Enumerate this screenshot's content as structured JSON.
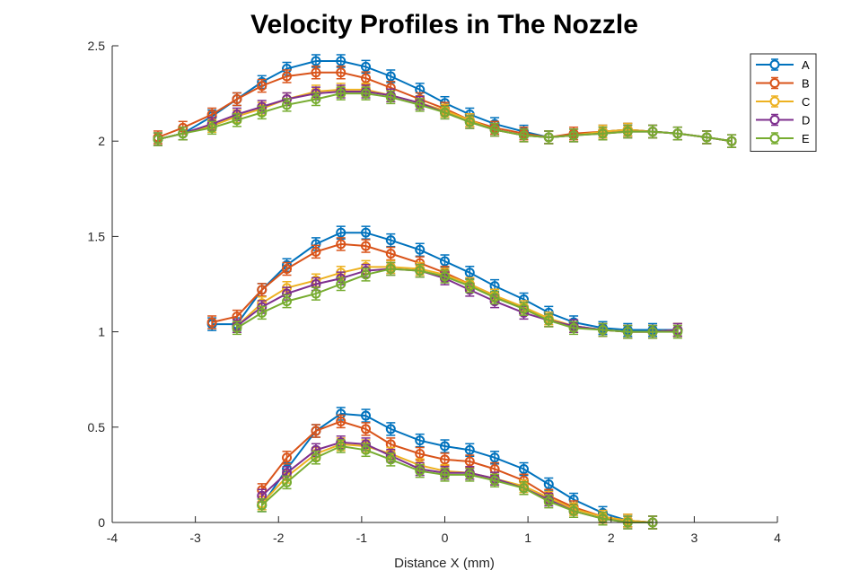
{
  "chart_data": {
    "type": "line",
    "title": "Velocity Profiles in The Nozzle",
    "xlabel": "Distance X (mm)",
    "ylabel": "",
    "xlim": [
      -4,
      4
    ],
    "ylim": [
      0,
      2.5
    ],
    "xticks": [
      "-4",
      "-3",
      "-2",
      "-1",
      "0",
      "1",
      "2",
      "3",
      "4"
    ],
    "yticks": [
      "0",
      "0.5",
      "1",
      "1.5",
      "2",
      "2.5"
    ],
    "grid": false,
    "legend_position": "top-right",
    "markers": "open-circle-with-error-bars",
    "series": [
      {
        "name": "A",
        "color": "#0072BD",
        "groups": [
          {
            "x": [
              -3.45,
              -3.15,
              -2.8,
              -2.5,
              -2.2,
              -1.9,
              -1.55,
              -1.25,
              -0.95,
              -0.65,
              -0.3,
              0.0,
              0.3,
              0.6,
              0.95,
              1.25,
              1.55,
              1.9,
              2.2,
              2.5,
              2.8,
              3.15,
              3.45
            ],
            "y": [
              2.01,
              2.04,
              2.13,
              2.22,
              2.31,
              2.38,
              2.42,
              2.42,
              2.39,
              2.34,
              2.27,
              2.2,
              2.14,
              2.09,
              2.05,
              2.02,
              2.03,
              2.05,
              2.06,
              2.05,
              2.04,
              2.02,
              2.0
            ]
          },
          {
            "x": [
              -2.8,
              -2.5,
              -2.2,
              -1.9,
              -1.55,
              -1.25,
              -0.95,
              -0.65,
              -0.3,
              0.0,
              0.3,
              0.6,
              0.95,
              1.25,
              1.55,
              1.9,
              2.2,
              2.5,
              2.8
            ],
            "y": [
              1.04,
              1.04,
              1.22,
              1.35,
              1.46,
              1.52,
              1.52,
              1.48,
              1.43,
              1.37,
              1.31,
              1.24,
              1.17,
              1.1,
              1.05,
              1.02,
              1.01,
              1.01,
              1.01
            ]
          },
          {
            "x": [
              -2.2,
              -1.9,
              -1.55,
              -1.25,
              -0.95,
              -0.65,
              -0.3,
              0.0,
              0.3,
              0.6,
              0.95,
              1.25,
              1.55,
              1.9,
              2.2,
              2.5
            ],
            "y": [
              0.09,
              0.28,
              0.48,
              0.57,
              0.56,
              0.49,
              0.43,
              0.4,
              0.38,
              0.34,
              0.28,
              0.2,
              0.12,
              0.05,
              0.01,
              0.0
            ]
          }
        ]
      },
      {
        "name": "B",
        "color": "#D95319",
        "groups": [
          {
            "x": [
              -3.45,
              -3.15,
              -2.8,
              -2.5,
              -2.2,
              -1.9,
              -1.55,
              -1.25,
              -0.95,
              -0.65,
              -0.3,
              0.0,
              0.3,
              0.6,
              0.95,
              1.25,
              1.55,
              1.9,
              2.2,
              2.5,
              2.8,
              3.15,
              3.45
            ],
            "y": [
              2.02,
              2.07,
              2.14,
              2.22,
              2.29,
              2.34,
              2.36,
              2.36,
              2.33,
              2.28,
              2.22,
              2.17,
              2.11,
              2.07,
              2.04,
              2.02,
              2.04,
              2.05,
              2.06,
              2.05,
              2.04,
              2.02,
              2.0
            ]
          },
          {
            "x": [
              -2.8,
              -2.5,
              -2.2,
              -1.9,
              -1.55,
              -1.25,
              -0.95,
              -0.65,
              -0.3,
              0.0,
              0.3,
              0.6,
              0.95,
              1.25,
              1.55,
              1.9,
              2.2,
              2.5,
              2.8
            ],
            "y": [
              1.05,
              1.08,
              1.22,
              1.33,
              1.42,
              1.46,
              1.45,
              1.41,
              1.36,
              1.31,
              1.25,
              1.19,
              1.12,
              1.06,
              1.03,
              1.01,
              1.0,
              1.0,
              1.01
            ]
          },
          {
            "x": [
              -2.2,
              -1.9,
              -1.55,
              -1.25,
              -0.95,
              -0.65,
              -0.3,
              0.0,
              0.3,
              0.6,
              0.95,
              1.25,
              1.55,
              1.9,
              2.2,
              2.5
            ],
            "y": [
              0.17,
              0.34,
              0.48,
              0.53,
              0.49,
              0.41,
              0.36,
              0.33,
              0.32,
              0.28,
              0.22,
              0.14,
              0.08,
              0.03,
              0.01,
              0.0
            ]
          }
        ]
      },
      {
        "name": "C",
        "color": "#EDB120",
        "groups": [
          {
            "x": [
              -3.45,
              -3.15,
              -2.8,
              -2.5,
              -2.2,
              -1.9,
              -1.55,
              -1.25,
              -0.95,
              -0.65,
              -0.3,
              0.0,
              0.3,
              0.6,
              0.95,
              1.25,
              1.55,
              1.9,
              2.2,
              2.5,
              2.8,
              3.15,
              3.45
            ],
            "y": [
              2.01,
              2.04,
              2.08,
              2.13,
              2.17,
              2.22,
              2.26,
              2.27,
              2.27,
              2.24,
              2.2,
              2.16,
              2.11,
              2.06,
              2.03,
              2.02,
              2.03,
              2.05,
              2.06,
              2.05,
              2.04,
              2.02,
              2.0
            ]
          },
          {
            "x": [
              -2.5,
              -2.2,
              -1.9,
              -1.55,
              -1.25,
              -0.95,
              -0.65,
              -0.3,
              0.0,
              0.3,
              0.6,
              0.95,
              1.25,
              1.55,
              1.9,
              2.2,
              2.5,
              2.8
            ],
            "y": [
              1.03,
              1.15,
              1.23,
              1.27,
              1.31,
              1.34,
              1.34,
              1.33,
              1.3,
              1.25,
              1.19,
              1.13,
              1.07,
              1.03,
              1.01,
              1.0,
              1.0,
              1.01
            ]
          },
          {
            "x": [
              -2.2,
              -1.9,
              -1.55,
              -1.25,
              -0.95,
              -0.65,
              -0.3,
              0.0,
              0.3,
              0.6,
              0.95,
              1.25,
              1.55,
              1.9,
              2.2,
              2.5
            ],
            "y": [
              0.1,
              0.24,
              0.36,
              0.41,
              0.4,
              0.36,
              0.3,
              0.27,
              0.26,
              0.23,
              0.19,
              0.13,
              0.07,
              0.03,
              0.01,
              0.0
            ]
          }
        ]
      },
      {
        "name": "D",
        "color": "#7E2F8E",
        "groups": [
          {
            "x": [
              -3.45,
              -3.15,
              -2.8,
              -2.5,
              -2.2,
              -1.9,
              -1.55,
              -1.25,
              -0.95,
              -0.65,
              -0.3,
              0.0,
              0.3,
              0.6,
              0.95,
              1.25,
              1.55,
              1.9,
              2.2,
              2.5,
              2.8,
              3.15,
              3.45
            ],
            "y": [
              2.01,
              2.04,
              2.09,
              2.14,
              2.18,
              2.22,
              2.25,
              2.26,
              2.26,
              2.24,
              2.2,
              2.15,
              2.1,
              2.06,
              2.03,
              2.02,
              2.03,
              2.04,
              2.05,
              2.05,
              2.04,
              2.02,
              2.0
            ]
          },
          {
            "x": [
              -2.5,
              -2.2,
              -1.9,
              -1.55,
              -1.25,
              -0.95,
              -0.65,
              -0.3,
              0.0,
              0.3,
              0.6,
              0.95,
              1.25,
              1.55,
              1.9,
              2.2,
              2.5,
              2.8
            ],
            "y": [
              1.03,
              1.13,
              1.2,
              1.25,
              1.28,
              1.32,
              1.33,
              1.32,
              1.28,
              1.22,
              1.16,
              1.1,
              1.06,
              1.03,
              1.01,
              1.0,
              1.0,
              1.01
            ]
          },
          {
            "x": [
              -2.2,
              -1.9,
              -1.55,
              -1.25,
              -0.95,
              -0.65,
              -0.3,
              0.0,
              0.3,
              0.6,
              0.95,
              1.25,
              1.55,
              1.9,
              2.2,
              2.5
            ],
            "y": [
              0.14,
              0.26,
              0.38,
              0.42,
              0.41,
              0.35,
              0.28,
              0.26,
              0.26,
              0.23,
              0.18,
              0.12,
              0.06,
              0.02,
              0.0,
              0.0
            ]
          }
        ]
      },
      {
        "name": "E",
        "color": "#77AC30",
        "groups": [
          {
            "x": [
              -3.45,
              -3.15,
              -2.8,
              -2.5,
              -2.2,
              -1.9,
              -1.55,
              -1.25,
              -0.95,
              -0.65,
              -0.3,
              0.0,
              0.3,
              0.6,
              0.95,
              1.25,
              1.55,
              1.9,
              2.2,
              2.5,
              2.8,
              3.15,
              3.45
            ],
            "y": [
              2.01,
              2.04,
              2.07,
              2.11,
              2.15,
              2.19,
              2.22,
              2.25,
              2.25,
              2.23,
              2.19,
              2.15,
              2.1,
              2.06,
              2.03,
              2.02,
              2.03,
              2.04,
              2.05,
              2.05,
              2.04,
              2.02,
              2.0
            ]
          },
          {
            "x": [
              -2.5,
              -2.2,
              -1.9,
              -1.55,
              -1.25,
              -0.95,
              -0.65,
              -0.3,
              0.0,
              0.3,
              0.6,
              0.95,
              1.25,
              1.55,
              1.9,
              2.2,
              2.5,
              2.8
            ],
            "y": [
              1.02,
              1.1,
              1.16,
              1.2,
              1.25,
              1.3,
              1.33,
              1.32,
              1.29,
              1.24,
              1.18,
              1.12,
              1.06,
              1.02,
              1.01,
              1.0,
              1.0,
              1.0
            ]
          },
          {
            "x": [
              -2.2,
              -1.9,
              -1.55,
              -1.25,
              -0.95,
              -0.65,
              -0.3,
              0.0,
              0.3,
              0.6,
              0.95,
              1.25,
              1.55,
              1.9,
              2.2,
              2.5
            ],
            "y": [
              0.09,
              0.21,
              0.34,
              0.4,
              0.38,
              0.33,
              0.27,
              0.25,
              0.25,
              0.22,
              0.18,
              0.11,
              0.06,
              0.02,
              0.0,
              0.0
            ]
          }
        ]
      }
    ]
  }
}
